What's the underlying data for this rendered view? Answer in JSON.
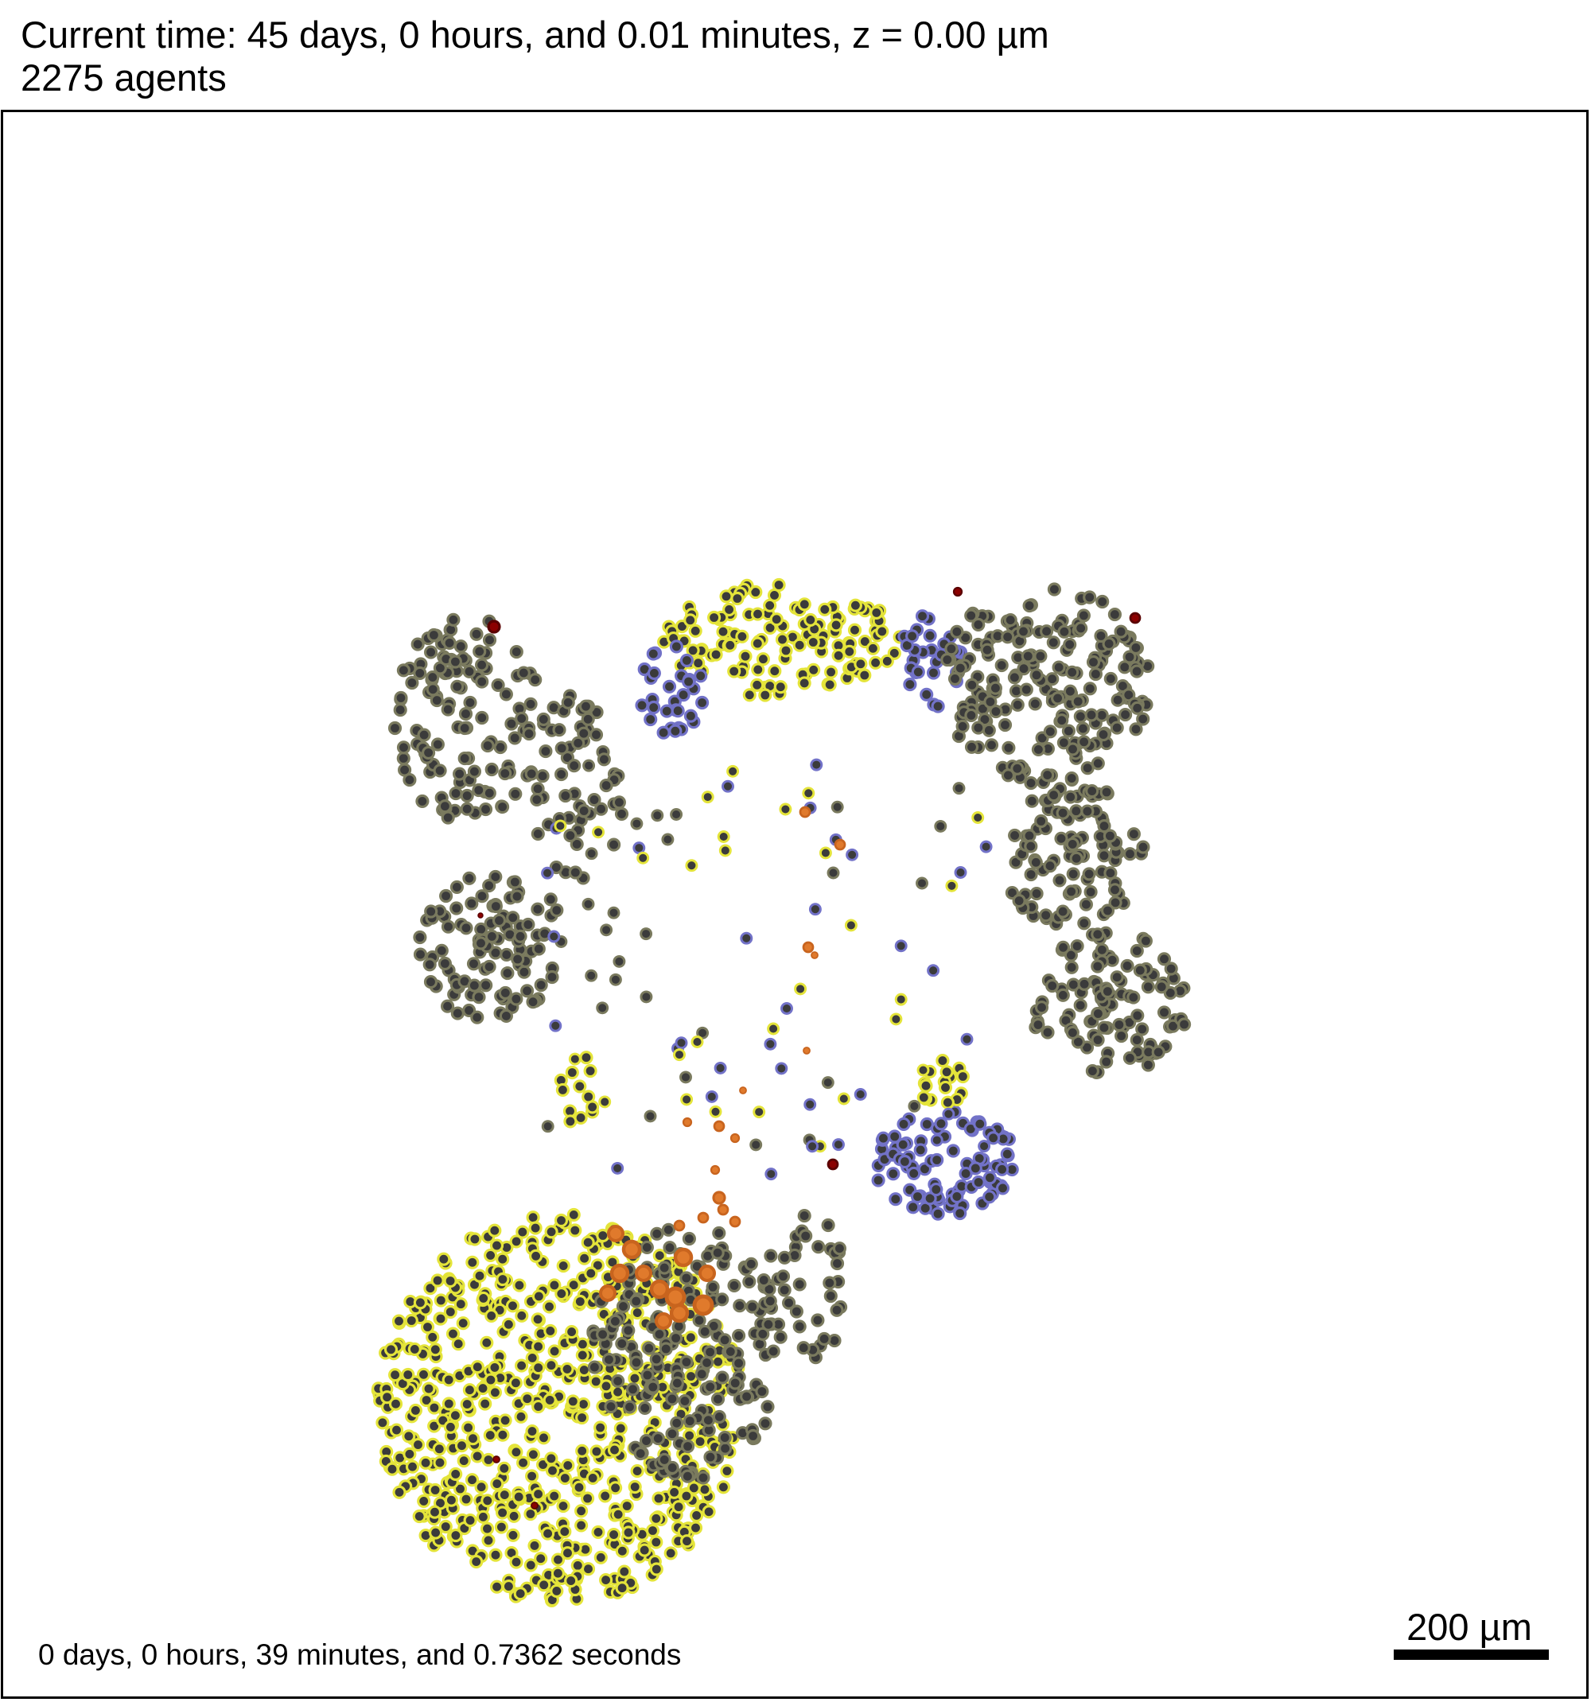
{
  "header": {
    "time_line": "Current time: 45 days, 0 hours, and 0.01 minutes, z = 0.00 µm",
    "agents_line": "2275 agents"
  },
  "footer": {
    "elapsed_time": "0 days, 0 hours, 39 minutes, and 0.7362 seconds",
    "scale_bar_label": "200 µm"
  },
  "colors": {
    "background": "#ffffff",
    "cell_core": "#3b3b3b",
    "cell_rim_dark": "#7a7a5e",
    "cell_rim_yellow": "#e4e43a",
    "cell_rim_blue": "#7272c8",
    "cell_rim_orange": "#c8641e",
    "dead_cell": "#8b0000"
  }
}
